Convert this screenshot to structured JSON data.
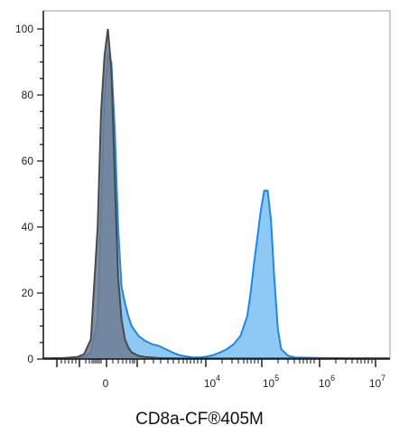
{
  "chart_data": {
    "type": "area",
    "title": "",
    "xlabel": "CD8a-CF®405M",
    "ylabel": "",
    "xscale": "biexponential",
    "ylim": [
      0,
      104
    ],
    "yticks": [
      0,
      20,
      40,
      60,
      80,
      100
    ],
    "xtick_labels": [
      {
        "base": "0",
        "exp": ""
      },
      {
        "base": "10",
        "exp": "4"
      },
      {
        "base": "10",
        "exp": "5"
      },
      {
        "base": "10",
        "exp": "6"
      },
      {
        "base": "10",
        "exp": "7"
      }
    ],
    "grid": false,
    "legend": "none",
    "series": [
      {
        "color": "#1e88e5",
        "fill": "#8ec9f5",
        "points": [
          [
            -5,
            0.2
          ],
          [
            -1,
            0.3
          ],
          [
            1,
            0.6
          ],
          [
            2,
            2
          ],
          [
            3,
            12
          ],
          [
            3.5,
            45
          ],
          [
            4,
            80
          ],
          [
            4.5,
            92
          ],
          [
            5,
            90
          ],
          [
            5.5,
            70
          ],
          [
            6,
            40
          ],
          [
            6.5,
            22
          ],
          [
            7,
            17
          ],
          [
            7.5,
            13
          ],
          [
            8,
            10
          ],
          [
            9,
            7
          ],
          [
            10,
            5.5
          ],
          [
            11,
            4.5
          ],
          [
            12,
            4
          ],
          [
            13,
            3
          ],
          [
            14,
            2
          ],
          [
            15,
            1.2
          ],
          [
            16,
            0.8
          ],
          [
            17,
            0.5
          ],
          [
            18,
            0.5
          ],
          [
            19,
            0.7
          ],
          [
            20,
            1.2
          ],
          [
            21,
            2
          ],
          [
            22,
            3
          ],
          [
            23,
            4.5
          ],
          [
            24,
            7
          ],
          [
            25,
            13
          ],
          [
            25.5,
            20
          ],
          [
            26,
            29
          ],
          [
            26.5,
            37
          ],
          [
            27,
            45
          ],
          [
            27.5,
            51
          ],
          [
            28,
            51
          ],
          [
            28.5,
            42
          ],
          [
            29,
            24
          ],
          [
            29.5,
            9
          ],
          [
            30,
            3
          ],
          [
            31,
            1
          ],
          [
            32,
            0.5
          ],
          [
            36,
            0.3
          ],
          [
            43,
            0.2
          ],
          [
            46,
            0.2
          ]
        ]
      },
      {
        "color": "#4a4a4a",
        "fill": "#6e7d91",
        "points": [
          [
            -5,
            0.2
          ],
          [
            -2,
            0.3
          ],
          [
            0,
            0.6
          ],
          [
            1,
            1.5
          ],
          [
            2,
            6
          ],
          [
            3,
            40
          ],
          [
            3.5,
            75
          ],
          [
            4,
            92
          ],
          [
            4.5,
            100
          ],
          [
            5,
            88
          ],
          [
            5.5,
            55
          ],
          [
            6,
            25
          ],
          [
            6.5,
            12
          ],
          [
            7,
            6
          ],
          [
            7.5,
            3.5
          ],
          [
            8,
            2
          ],
          [
            9,
            1
          ],
          [
            10,
            0.6
          ],
          [
            12,
            0.3
          ],
          [
            15,
            0.2
          ],
          [
            20,
            0.2
          ],
          [
            46,
            0.2
          ]
        ]
      }
    ]
  }
}
